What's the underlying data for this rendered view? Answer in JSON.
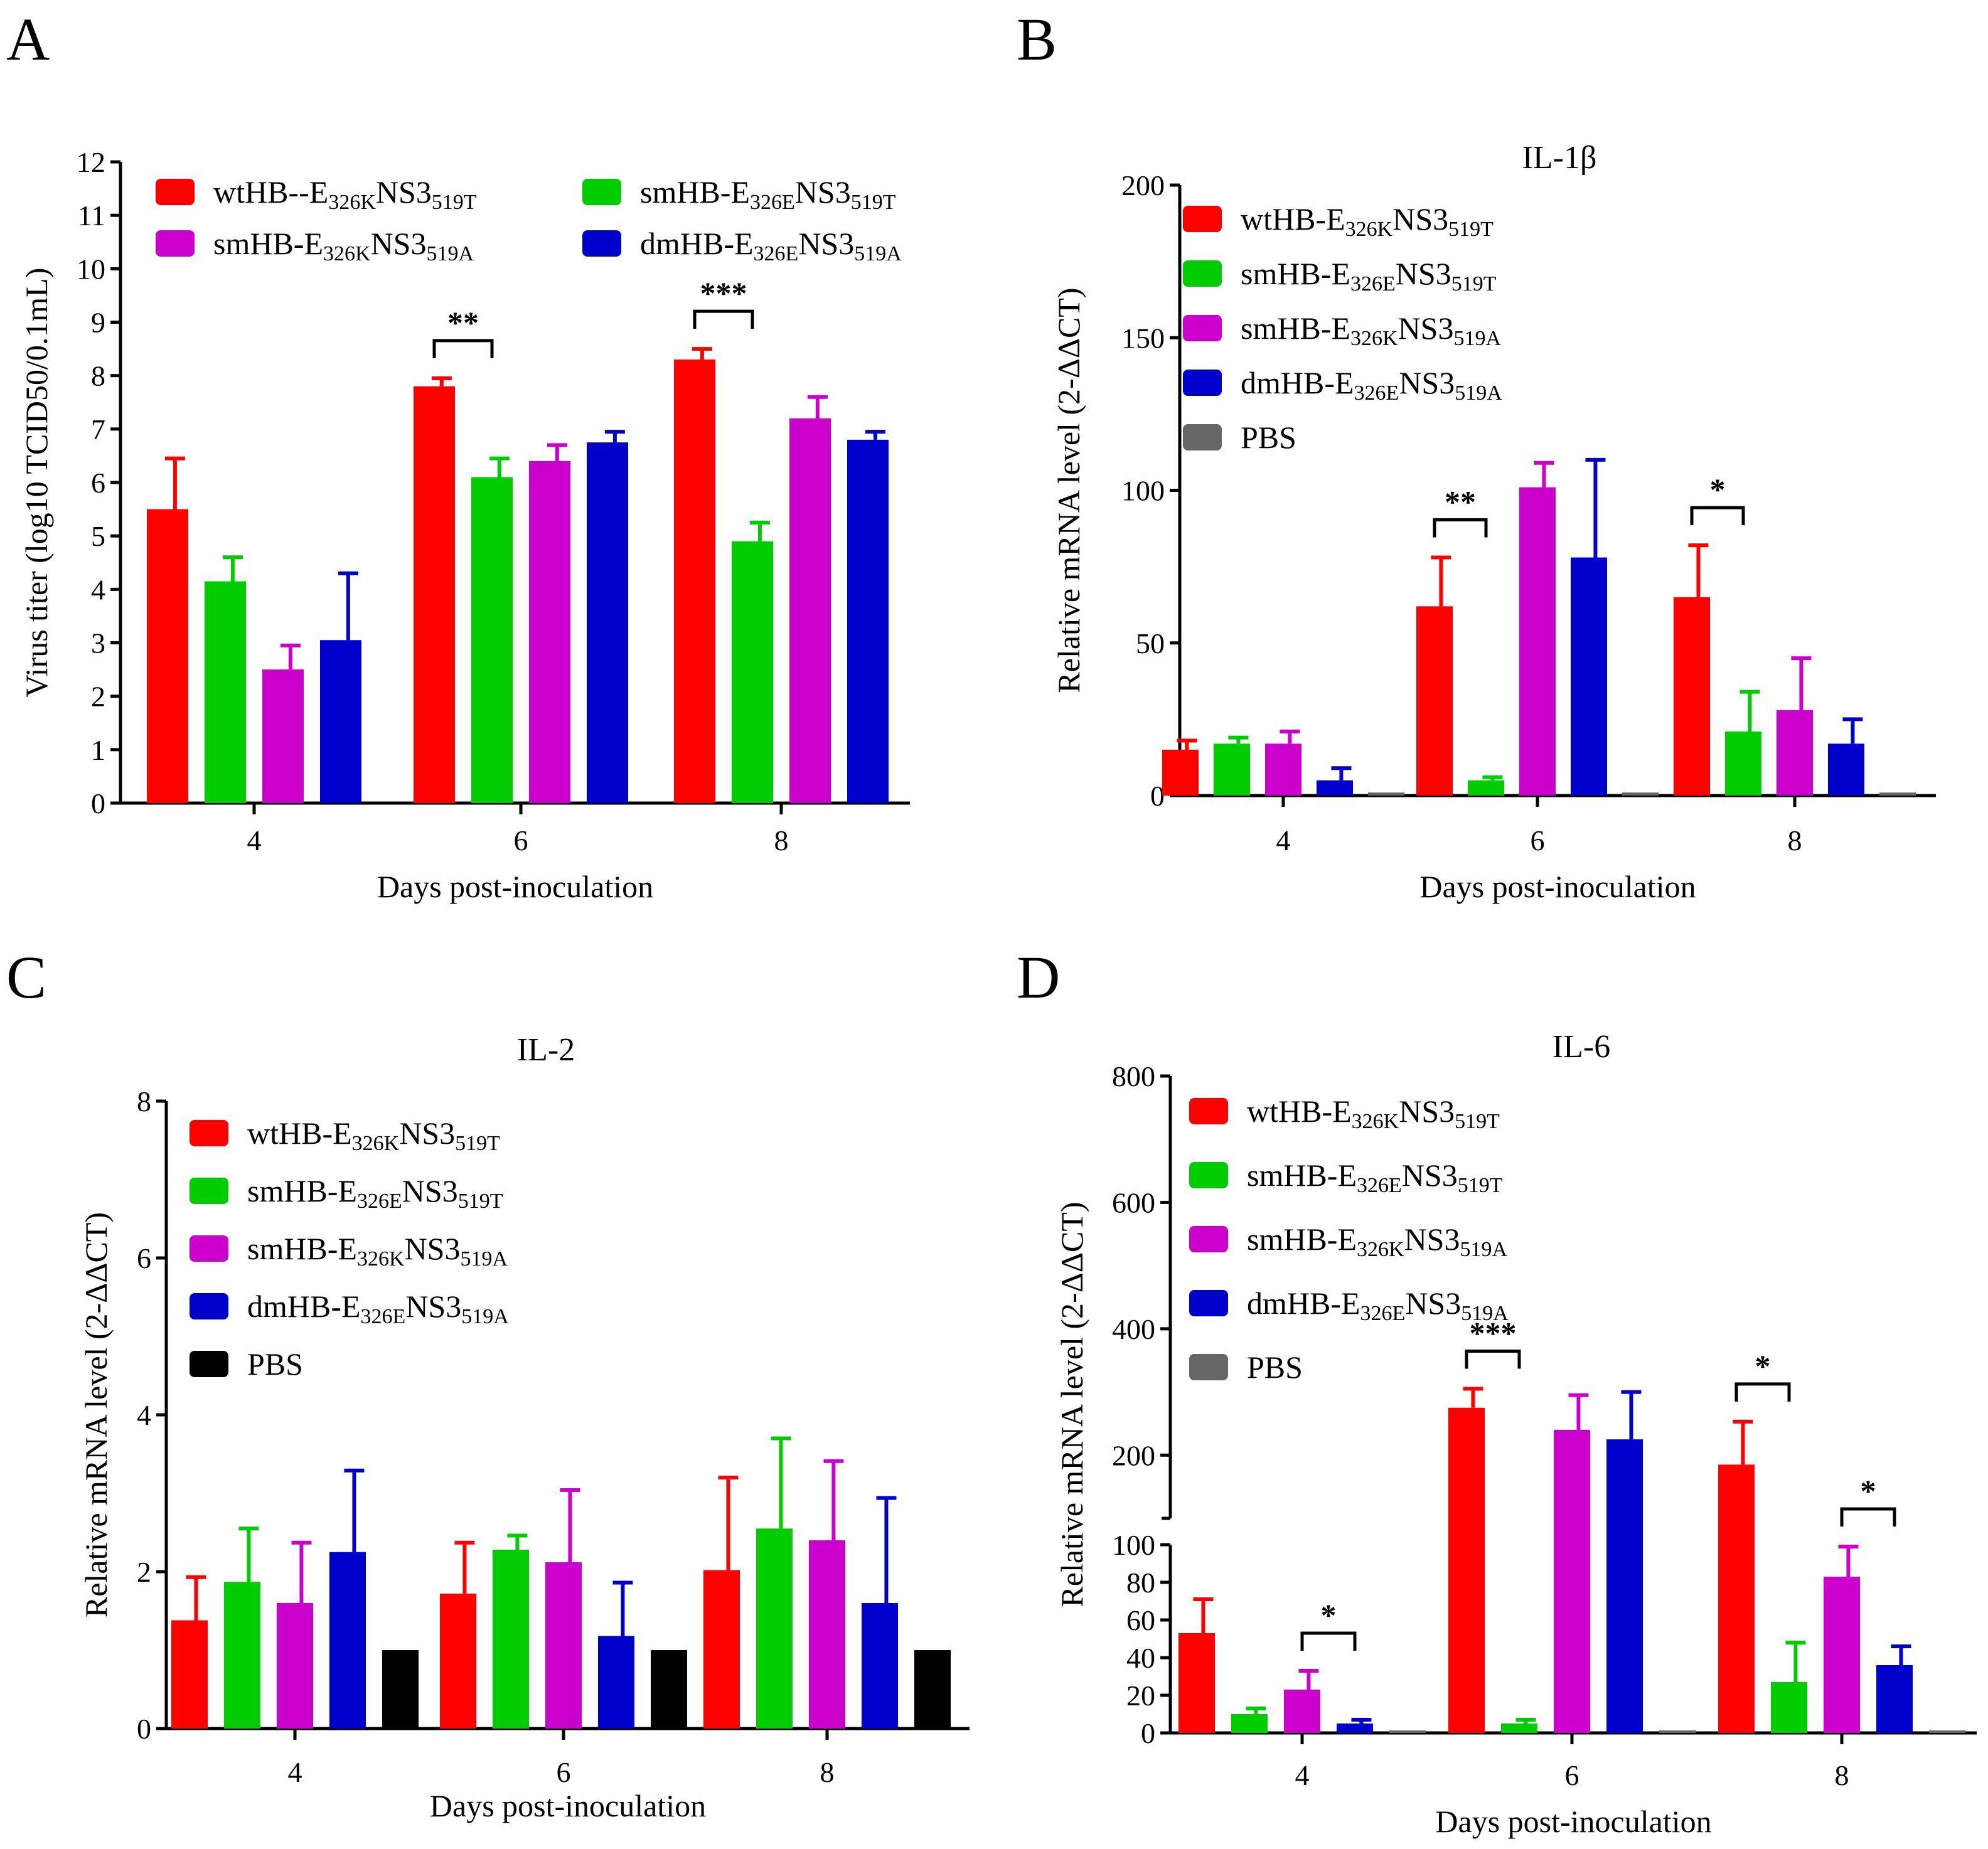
{
  "colors": {
    "red": "#ff0000",
    "green": "#00cc00",
    "magenta": "#cc00cc",
    "blue": "#0000cc",
    "gray": "#666666",
    "black": "#000000"
  },
  "chart_data": [
    {
      "panel": "A",
      "type": "bar",
      "title": "",
      "xlabel": "Days post-inoculation",
      "ylabel": "Virus titer (log10 TCID50/0.1mL)",
      "categories": [
        "4",
        "6",
        "8"
      ],
      "ylim": [
        0,
        12
      ],
      "yticks": [
        "0",
        "1",
        "2",
        "3",
        "4",
        "5",
        "6",
        "7",
        "8",
        "9",
        "10",
        "11",
        "12"
      ],
      "legend_position": "top",
      "series": [
        {
          "label": "wtHB--E326KNS3519T",
          "parts": [
            [
              "wtHB--E",
              ""
            ],
            [
              "326K",
              "sub"
            ],
            [
              "NS3",
              ""
            ],
            [
              "519T",
              "sub"
            ]
          ],
          "color": "red",
          "values": [
            5.5,
            7.8,
            8.3
          ],
          "errors": [
            0.95,
            0.15,
            0.2
          ]
        },
        {
          "label": "smHB-E326ENS3519T",
          "parts": [
            [
              "smHB-E",
              ""
            ],
            [
              "326E",
              "sub"
            ],
            [
              "NS3",
              ""
            ],
            [
              "519T",
              "sub"
            ]
          ],
          "color": "green",
          "values": [
            4.15,
            6.1,
            4.9
          ],
          "errors": [
            0.45,
            0.35,
            0.35
          ]
        },
        {
          "label": "smHB-E326KNS3519A",
          "parts": [
            [
              "smHB-E",
              ""
            ],
            [
              "326K",
              "sub"
            ],
            [
              "NS3",
              ""
            ],
            [
              "519A",
              "sub"
            ]
          ],
          "color": "magenta",
          "values": [
            2.5,
            6.4,
            7.2
          ],
          "errors": [
            0.45,
            0.3,
            0.4
          ]
        },
        {
          "label": "dmHB-E326ENS3519A",
          "parts": [
            [
              "dmHB-E",
              ""
            ],
            [
              "326E",
              "sub"
            ],
            [
              "NS3",
              ""
            ],
            [
              "519A",
              "sub"
            ]
          ],
          "color": "blue",
          "values": [
            3.05,
            6.75,
            6.8
          ],
          "errors": [
            1.25,
            0.2,
            0.15
          ]
        }
      ],
      "significance": [
        {
          "category": "6",
          "from_series": 0,
          "to_series": 1,
          "label": "**"
        },
        {
          "category": "8",
          "from_series": 0,
          "to_series": 1,
          "label": "***"
        }
      ]
    },
    {
      "panel": "B",
      "type": "bar",
      "title": "IL-1β",
      "xlabel": "Days post-inoculation",
      "ylabel": "Relative mRNA level (2-ΔΔCT)",
      "categories": [
        "4",
        "6",
        "8"
      ],
      "ylim": [
        0,
        200
      ],
      "yticks": [
        "0",
        "50",
        "100",
        "150",
        "200"
      ],
      "legend_position": "top-left",
      "series": [
        {
          "label": "wtHB-E326KNS3519T",
          "parts": [
            [
              "wtHB-E",
              ""
            ],
            [
              "326K",
              "sub"
            ],
            [
              "NS3",
              ""
            ],
            [
              "519T",
              "sub"
            ]
          ],
          "color": "red",
          "values": [
            15,
            62,
            65
          ],
          "errors": [
            3,
            16,
            17
          ]
        },
        {
          "label": "smHB-E326ENS3519T",
          "parts": [
            [
              "smHB-E",
              ""
            ],
            [
              "326E",
              "sub"
            ],
            [
              "NS3",
              ""
            ],
            [
              "519T",
              "sub"
            ]
          ],
          "color": "green",
          "values": [
            17,
            5,
            21
          ],
          "errors": [
            2,
            1,
            13
          ]
        },
        {
          "label": "smHB-E326KNS3519A",
          "parts": [
            [
              "smHB-E",
              ""
            ],
            [
              "326K",
              "sub"
            ],
            [
              "NS3",
              ""
            ],
            [
              "519A",
              "sub"
            ]
          ],
          "color": "magenta",
          "values": [
            17,
            101,
            28
          ],
          "errors": [
            4,
            8,
            17
          ]
        },
        {
          "label": "dmHB-E326ENS3519A",
          "parts": [
            [
              "dmHB-E",
              ""
            ],
            [
              "326E",
              "sub"
            ],
            [
              "NS3",
              ""
            ],
            [
              "519A",
              "sub"
            ]
          ],
          "color": "blue",
          "values": [
            5,
            78,
            17
          ],
          "errors": [
            4,
            32,
            8
          ]
        },
        {
          "label": "PBS",
          "parts": [
            [
              "PBS",
              ""
            ]
          ],
          "color": "gray",
          "values": [
            1,
            1,
            1
          ],
          "errors": [
            0,
            0,
            0
          ]
        }
      ],
      "significance": [
        {
          "category": "6",
          "from_series": 0,
          "to_series": 1,
          "label": "**"
        },
        {
          "category": "8",
          "from_series": 0,
          "to_series": 1,
          "label": "*"
        }
      ]
    },
    {
      "panel": "C",
      "type": "bar",
      "title": "IL-2",
      "xlabel": "Days post-inoculation",
      "ylabel": "Relative mRNA level (2-ΔΔCT)",
      "categories": [
        "4",
        "6",
        "8"
      ],
      "ylim": [
        0,
        8
      ],
      "yticks": [
        "0",
        "2",
        "4",
        "6",
        "8"
      ],
      "legend_position": "top-left",
      "series": [
        {
          "label": "wtHB-E326KNS3519T",
          "parts": [
            [
              "wtHB-E",
              ""
            ],
            [
              "326K",
              "sub"
            ],
            [
              "NS3",
              ""
            ],
            [
              "519T",
              "sub"
            ]
          ],
          "color": "red",
          "values": [
            1.38,
            1.72,
            2.02
          ],
          "errors": [
            0.55,
            0.65,
            1.18
          ]
        },
        {
          "label": "smHB-E326ENS3519T",
          "parts": [
            [
              "smHB-E",
              ""
            ],
            [
              "326E",
              "sub"
            ],
            [
              "NS3",
              ""
            ],
            [
              "519T",
              "sub"
            ]
          ],
          "color": "green",
          "values": [
            1.87,
            2.28,
            2.55
          ],
          "errors": [
            0.68,
            0.18,
            1.15
          ]
        },
        {
          "label": "smHB-E326KNS3519A",
          "parts": [
            [
              "smHB-E",
              ""
            ],
            [
              "326K",
              "sub"
            ],
            [
              "NS3",
              ""
            ],
            [
              "519A",
              "sub"
            ]
          ],
          "color": "magenta",
          "values": [
            1.6,
            2.12,
            2.4
          ],
          "errors": [
            0.77,
            0.92,
            1.01
          ]
        },
        {
          "label": "dmHB-E326ENS3519A",
          "parts": [
            [
              "dmHB-E",
              ""
            ],
            [
              "326E",
              "sub"
            ],
            [
              "NS3",
              ""
            ],
            [
              "519A",
              "sub"
            ]
          ],
          "color": "blue",
          "values": [
            2.25,
            1.18,
            1.6
          ],
          "errors": [
            1.04,
            0.68,
            1.34
          ]
        },
        {
          "label": "PBS",
          "parts": [
            [
              "PBS",
              ""
            ]
          ],
          "color": "black",
          "values": [
            1.0,
            1.0,
            1.0
          ],
          "errors": [
            0,
            0,
            0
          ]
        }
      ],
      "significance": []
    },
    {
      "panel": "D",
      "type": "bar",
      "title": "IL-6",
      "xlabel": "Days post-inoculation",
      "ylabel": "Relative mRNA level (2-ΔΔCT)",
      "categories": [
        "4",
        "6",
        "8"
      ],
      "ylim": [
        0,
        800
      ],
      "axis_break": {
        "lower": [
          0,
          100
        ],
        "upper": [
          100,
          800
        ]
      },
      "yticks_lower": [
        "0",
        "20",
        "40",
        "60",
        "80",
        "100"
      ],
      "yticks_upper": [
        "200",
        "400",
        "600",
        "800"
      ],
      "legend_position": "top-left",
      "series": [
        {
          "label": "wtHB-E326KNS3519T",
          "parts": [
            [
              "wtHB-E",
              ""
            ],
            [
              "326K",
              "sub"
            ],
            [
              "NS3",
              ""
            ],
            [
              "519T",
              "sub"
            ]
          ],
          "color": "red",
          "values": [
            53,
            275,
            185
          ],
          "errors": [
            18,
            30,
            68
          ]
        },
        {
          "label": "smHB-E326ENS3519T",
          "parts": [
            [
              "smHB-E",
              ""
            ],
            [
              "326E",
              "sub"
            ],
            [
              "NS3",
              ""
            ],
            [
              "519T",
              "sub"
            ]
          ],
          "color": "green",
          "values": [
            10,
            5,
            27
          ],
          "errors": [
            3,
            2,
            21
          ]
        },
        {
          "label": "smHB-E326KNS3519A",
          "parts": [
            [
              "smHB-E",
              ""
            ],
            [
              "326K",
              "sub"
            ],
            [
              "NS3",
              ""
            ],
            [
              "519A",
              "sub"
            ]
          ],
          "color": "magenta",
          "values": [
            23,
            240,
            83
          ],
          "errors": [
            10,
            55,
            16
          ]
        },
        {
          "label": "dmHB-E326ENS3519A",
          "parts": [
            [
              "dmHB-E",
              ""
            ],
            [
              "326E",
              "sub"
            ],
            [
              "NS3",
              ""
            ],
            [
              "519A",
              "sub"
            ]
          ],
          "color": "blue",
          "values": [
            5,
            225,
            36
          ],
          "errors": [
            2,
            75,
            10
          ]
        },
        {
          "label": "PBS",
          "parts": [
            [
              "PBS",
              ""
            ]
          ],
          "color": "gray",
          "values": [
            1,
            1,
            1
          ],
          "errors": [
            0,
            0,
            0
          ]
        }
      ],
      "significance": [
        {
          "category": "4",
          "from_series": 2,
          "to_series": 3,
          "label": "*"
        },
        {
          "category": "6",
          "from_series": 0,
          "to_series": 1,
          "label": "***"
        },
        {
          "category": "8",
          "from_series": 0,
          "to_series": 1,
          "label": "*"
        },
        {
          "category": "8",
          "from_series": 2,
          "to_series": 3,
          "label": "*"
        }
      ]
    }
  ]
}
